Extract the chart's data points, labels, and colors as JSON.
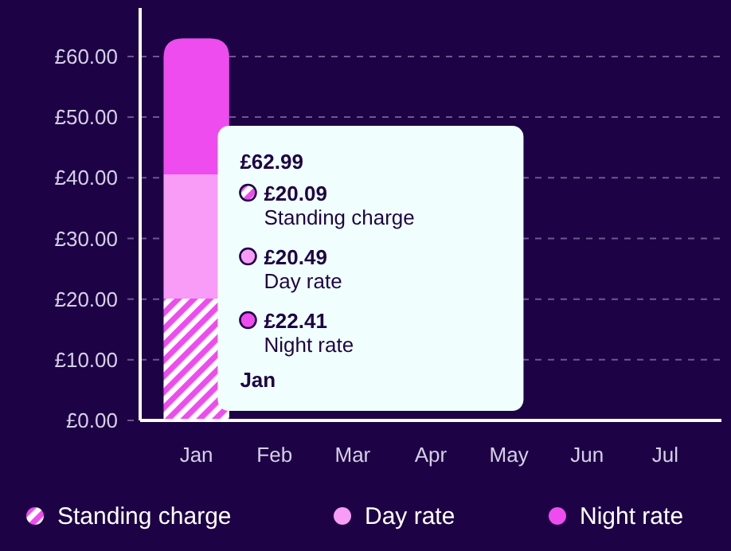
{
  "chart_data": {
    "type": "bar",
    "stacked": true,
    "categories": [
      "Jan",
      "Feb",
      "Mar",
      "Apr",
      "May",
      "Jun",
      "Jul"
    ],
    "series": [
      {
        "name": "Standing charge",
        "color": "#ee4cee",
        "values": [
          20.09,
          null,
          null,
          null,
          null,
          null,
          null
        ]
      },
      {
        "name": "Day rate",
        "color": "#f89cf8",
        "values": [
          20.49,
          null,
          null,
          null,
          null,
          null,
          null
        ]
      },
      {
        "name": "Night rate",
        "color": "#ee4cee",
        "values": [
          22.41,
          null,
          null,
          null,
          null,
          null,
          null
        ]
      }
    ],
    "annotations": [
      "£62.99",
      "£20.09",
      "Standing charge",
      "£20.49",
      "Day rate",
      "£22.41",
      "Night rate",
      "Jan"
    ],
    "ylim": [
      0,
      68
    ],
    "yticks": [
      {
        "value": 0,
        "label": "£0.00"
      },
      {
        "value": 10,
        "label": "£10.00"
      },
      {
        "value": 20,
        "label": "£20.00"
      },
      {
        "value": 30,
        "label": "£30.00"
      },
      {
        "value": 40,
        "label": "£40.00"
      },
      {
        "value": 50,
        "label": "£50.00"
      },
      {
        "value": 60,
        "label": "£60.00"
      }
    ],
    "grid": "y",
    "legend": "bottom"
  }
}
